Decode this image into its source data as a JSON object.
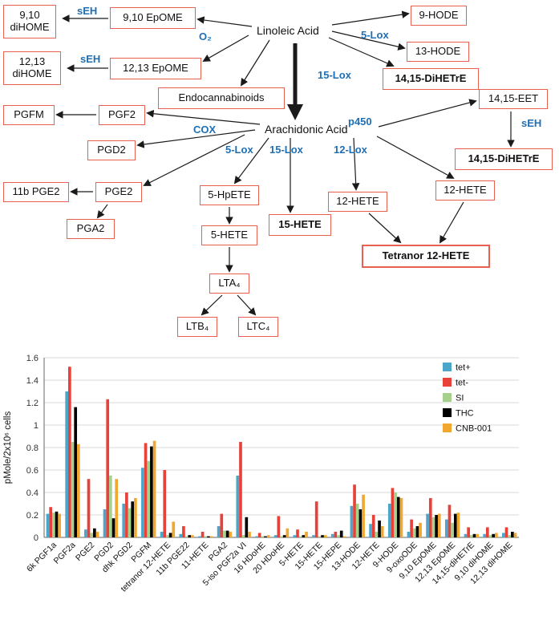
{
  "diagram": {
    "boxes": {
      "dihome910": "9,10 diHOME",
      "epome910": "9,10 EpOME",
      "hode9": "9-HODE",
      "hode13": "13-HODE",
      "dihome1213": "12,13 diHOME",
      "epome1213": "12,13 EpOME",
      "dihetre1415_top": "14,15-DiHETrE",
      "endocannabinoids": "Endocannabinoids",
      "eet1415": "14,15-EET",
      "pgfm": "PGFM",
      "pgf2": "PGF2",
      "pgd2": "PGD2",
      "dihetre1415_right": "14,15-DiHETrE",
      "pge2_11b": "11b PGE2",
      "pge2": "PGE2",
      "hpete5": "5-HpETE",
      "hete12_mid": "12-HETE",
      "hete12_right": "12-HETE",
      "pga2": "PGA2",
      "hete5": "5-HETE",
      "hete15": "15-HETE",
      "tetranor12hete": "Tetranor 12-HETE",
      "lta4": "LTA₄",
      "ltb4": "LTB₄",
      "ltc4": "LTC₄"
    },
    "plain_labels": {
      "linoleic": "Linoleic Acid",
      "arachidonic": "Arachidonic Acid"
    },
    "enzymes": {
      "seh_top": "sEH",
      "seh_mid": "sEH",
      "seh_right": "sEH",
      "o2": "O₂",
      "lox5_top": "5-Lox",
      "lox15_top": "15-Lox",
      "cox": "COX",
      "p450": "p450",
      "lox5_mid": "5-Lox",
      "lox15_mid": "15-Lox",
      "lox12": "12-Lox"
    }
  },
  "colors": {
    "box_border": "#E8604F",
    "enzyme_blue": "#1F6FB5",
    "arrow": "#1a1a1a",
    "gridline": "#d9d9d9",
    "axis": "#666666"
  },
  "chart_data": {
    "type": "bar",
    "title": "",
    "xlabel": "",
    "ylabel": "pMole/2x10⁶ cells",
    "ylim": [
      0,
      1.6
    ],
    "ytick_step": 0.2,
    "yticks": [
      0,
      0.2,
      0.4,
      0.6,
      0.8,
      1,
      1.2,
      1.4,
      1.6
    ],
    "grid": true,
    "legend_position": "top-right",
    "categories": [
      "6k PGF1a",
      "PGF2a",
      "PGE2",
      "PGD2",
      "dhk PGD2",
      "PGFM",
      "tetranor 12-HETE",
      "11b PGE22",
      "11-HETE",
      "PGA2",
      "5-iso PGF2a VI",
      "16 HDoHE",
      "20 HDoHE",
      "5-HETE",
      "15-HETE",
      "15-HEPE",
      "13-HODE",
      "12-HETE",
      "9-HODE",
      "9-oxoODE",
      "9,10 EpOME",
      "12,13 EpOME",
      "14,15-diHETrE",
      "9,10 diHOME",
      "12,13 diHOME"
    ],
    "series": [
      {
        "name": "tet+",
        "color": "#4BA6C9",
        "values": [
          0.21,
          1.3,
          0.07,
          0.25,
          0.3,
          0.62,
          0.05,
          0.03,
          0.01,
          0.1,
          0.55,
          0.01,
          0.02,
          0.02,
          0.02,
          0.03,
          0.28,
          0.12,
          0.3,
          0.05,
          0.21,
          0.16,
          0.03,
          0.03,
          0.04
        ]
      },
      {
        "name": "tet-",
        "color": "#E8413A",
        "values": [
          0.27,
          1.52,
          0.52,
          1.23,
          0.4,
          0.84,
          0.6,
          0.1,
          0.05,
          0.21,
          0.85,
          0.04,
          0.19,
          0.07,
          0.32,
          0.05,
          0.47,
          0.2,
          0.44,
          0.16,
          0.35,
          0.29,
          0.09,
          0.09,
          0.09
        ]
      },
      {
        "name": "SI",
        "color": "#A8D08D",
        "values": [
          0.22,
          0.85,
          0.04,
          0.55,
          0.26,
          0.68,
          0.02,
          0.01,
          0.01,
          0.06,
          0.02,
          0.01,
          0.01,
          0.01,
          0.01,
          0.02,
          0.3,
          0.05,
          0.4,
          0.08,
          0.18,
          0.13,
          0.02,
          0.02,
          0.02
        ]
      },
      {
        "name": "THC",
        "color": "#000000",
        "values": [
          0.23,
          1.16,
          0.08,
          0.17,
          0.32,
          0.81,
          0.04,
          0.02,
          0.01,
          0.06,
          0.18,
          0.01,
          0.02,
          0.02,
          0.02,
          0.06,
          0.25,
          0.15,
          0.36,
          0.1,
          0.2,
          0.21,
          0.03,
          0.03,
          0.05
        ]
      },
      {
        "name": "CNB-001",
        "color": "#F0A830",
        "values": [
          0.21,
          0.83,
          0.05,
          0.52,
          0.35,
          0.86,
          0.14,
          0.02,
          0.01,
          0.05,
          0.05,
          0.02,
          0.08,
          0.05,
          0.02,
          0.01,
          0.38,
          0.1,
          0.35,
          0.13,
          0.21,
          0.22,
          0.03,
          0.04,
          0.04
        ]
      }
    ]
  }
}
